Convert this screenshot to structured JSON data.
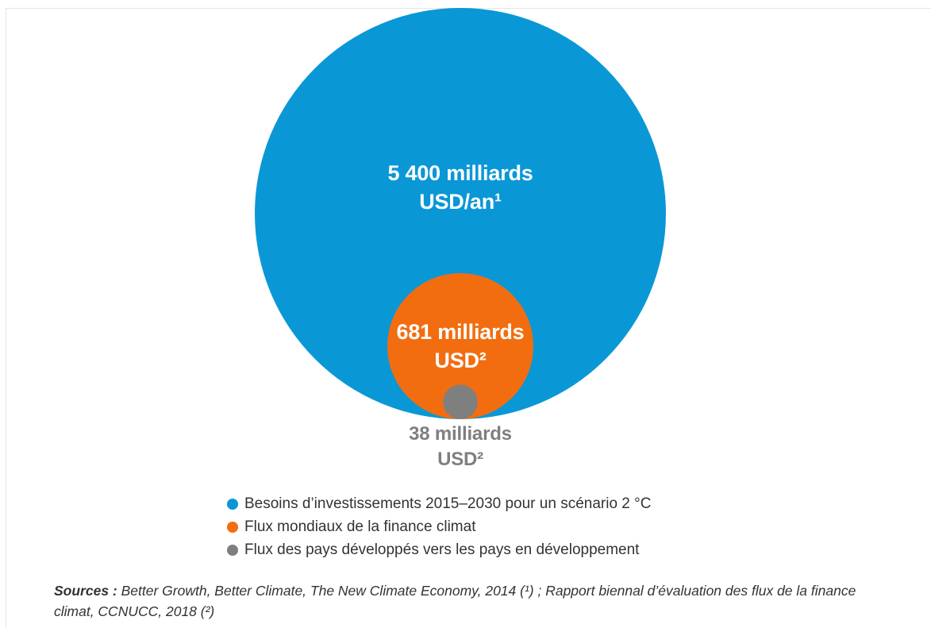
{
  "chart_data": {
    "type": "bubble",
    "unit": "milliards USD",
    "series": [
      {
        "name": "Besoins d’investissements 2015–2030 pour un scénario 2 °C",
        "value": 5400,
        "label_line1": "5 400 milliards",
        "label_line2": "USD/an¹",
        "color": "#0a97d6",
        "label_color": "#ffffff"
      },
      {
        "name": "Flux mondiaux de la finance climat",
        "value": 681,
        "label_line1": "681 milliards",
        "label_line2": "USD²",
        "color": "#f26d10",
        "label_color": "#ffffff"
      },
      {
        "name": "Flux des pays développés vers les pays en développement",
        "value": 38,
        "label_line1": "38 milliards",
        "label_line2": "USD²",
        "color": "#7f7f7f",
        "label_color": "#7f7f7f"
      }
    ],
    "legend_position": "bottom"
  },
  "sources": {
    "label": "Sources :",
    "text": "Better Growth, Better Climate, The New Climate Economy, 2014 (¹) ; Rapport biennal d’évaluation des flux de la finance climat, CCNUCC, 2018 (²)"
  }
}
